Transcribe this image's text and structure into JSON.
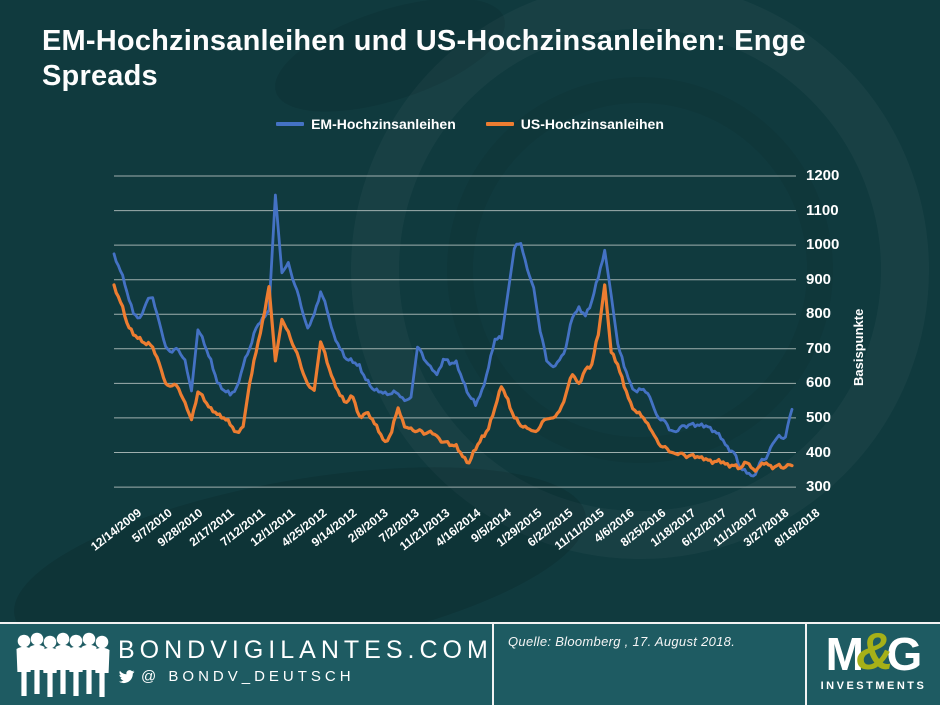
{
  "title": "EM-Hochzinsanleihen und US-Hochzinsanleihen: Enge Spreads",
  "colors": {
    "background": "#103a3e",
    "footer_background": "#1e5b62",
    "gridline": "#b8c4c2",
    "em_blue": "#4472c4",
    "us_orange": "#ed7d31",
    "mg_amp_olive": "#a6b018",
    "text": "#ffffff"
  },
  "chart_data": {
    "type": "line",
    "title": "EM-Hochzinsanleihen und US-Hochzinsanleihen: Enge Spreads",
    "xlabel": "",
    "ylabel": "Basispunkte",
    "ylim": [
      300,
      1200
    ],
    "yticks": [
      1200,
      1100,
      1000,
      900,
      800,
      700,
      600,
      500,
      400,
      300
    ],
    "grid": true,
    "legend_position": "top",
    "x_tick_labels": [
      "12/14/2009",
      "5/7/2010",
      "9/28/2010",
      "2/17/2011",
      "7/12/2011",
      "12/1/2011",
      "4/25/2012",
      "9/14/2012",
      "2/8/2013",
      "7/2/2013",
      "11/21/2013",
      "4/16/2014",
      "9/5/2014",
      "1/29/2015",
      "6/22/2015",
      "11/11/2015",
      "4/6/2016",
      "8/25/2016",
      "1/18/2017",
      "6/12/2017",
      "11/1/2017",
      "3/27/2018",
      "8/16/2018"
    ],
    "series": [
      {
        "name": "EM-Hochzinsanleihen",
        "color": "#4472c4",
        "values": [
          975,
          925,
          865,
          802,
          790,
          833,
          848,
          778,
          706,
          690,
          696,
          668,
          578,
          755,
          712,
          670,
          601,
          580,
          566,
          590,
          650,
          700,
          760,
          790,
          812,
          1145,
          920,
          950,
          885,
          820,
          760,
          800,
          865,
          810,
          745,
          700,
          670,
          660,
          655,
          610,
          585,
          575,
          575,
          570,
          570,
          550,
          560,
          705,
          670,
          650,
          625,
          670,
          655,
          665,
          608,
          565,
          536,
          583,
          645,
          728,
          730,
          860,
          990,
          1005,
          930,
          877,
          750,
          665,
          648,
          668,
          705,
          790,
          822,
          795,
          838,
          905,
          985,
          855,
          715,
          648,
          600,
          575,
          583,
          560,
          510,
          495,
          465,
          460,
          478,
          480,
          475,
          483,
          474,
          462,
          440,
          418,
          400,
          355,
          340,
          332,
          370,
          382,
          425,
          450,
          445,
          525
        ]
      },
      {
        "name": "US-Hochzinsanleihen",
        "color": "#ed7d31",
        "values": [
          885,
          835,
          775,
          740,
          733,
          712,
          705,
          658,
          600,
          593,
          585,
          545,
          495,
          575,
          550,
          530,
          510,
          500,
          480,
          460,
          475,
          600,
          690,
          780,
          880,
          665,
          785,
          750,
          700,
          645,
          598,
          580,
          720,
          660,
          610,
          565,
          545,
          560,
          506,
          514,
          497,
          460,
          432,
          459,
          529,
          474,
          471,
          462,
          453,
          462,
          448,
          430,
          420,
          423,
          388,
          370,
          408,
          448,
          468,
          530,
          590,
          555,
          500,
          477,
          470,
          462,
          475,
          497,
          500,
          520,
          570,
          625,
          600,
          640,
          655,
          740,
          885,
          690,
          655,
          590,
          545,
          515,
          500,
          470,
          440,
          416,
          402,
          396,
          398,
          390,
          385,
          388,
          378,
          374,
          370,
          368,
          362,
          355,
          370,
          352,
          360,
          370,
          353,
          366,
          358,
          362
        ]
      }
    ]
  },
  "footer": {
    "site": "BONDVIGILANTES.COM",
    "twitter_handle": "@ BONDV_DEUTSCH",
    "source": "Quelle: Bloomberg , 17. August 2018.",
    "logo": {
      "m": "M",
      "amp": "&",
      "g": "G",
      "sub": "INVESTMENTS"
    }
  }
}
